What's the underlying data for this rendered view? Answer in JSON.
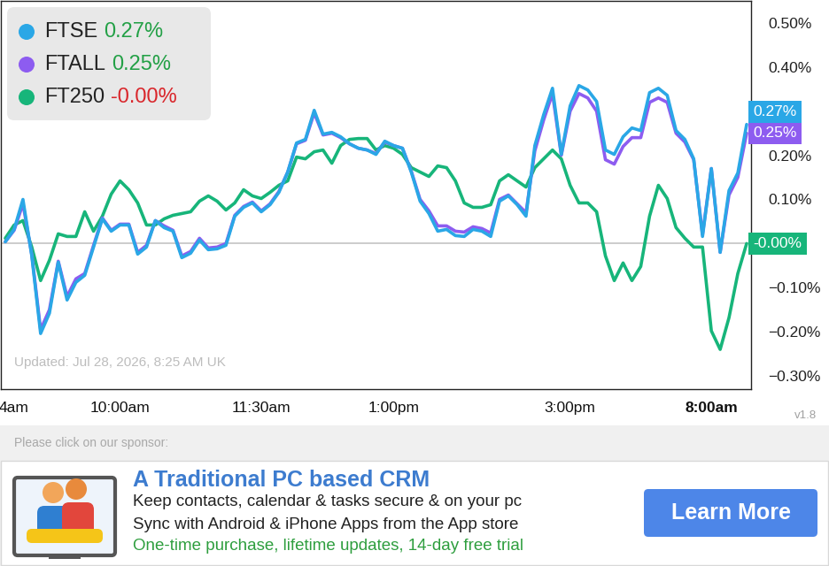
{
  "chart_data": {
    "type": "line",
    "categories": [
      null,
      "4am",
      null,
      null,
      null,
      null,
      null,
      null,
      null,
      null,
      null,
      null,
      null,
      "10:00am",
      null,
      null,
      null,
      null,
      null,
      null,
      null,
      null,
      null,
      null,
      null,
      null,
      null,
      null,
      null,
      "11:30am",
      null,
      null,
      null,
      null,
      null,
      null,
      null,
      null,
      null,
      null,
      null,
      null,
      null,
      null,
      "1:00pm",
      null,
      null,
      null,
      null,
      null,
      null,
      null,
      null,
      null,
      null,
      null,
      null,
      null,
      null,
      null,
      null,
      null,
      null,
      null,
      "3:00pm",
      null,
      null,
      null,
      null,
      null,
      null,
      null,
      null,
      null,
      null,
      null,
      null,
      null,
      null,
      null,
      "8:00am",
      null,
      null,
      null,
      null
    ],
    "series": [
      {
        "name": "FTSE",
        "color": "#2aa7e6",
        "change": "0.27%",
        "values": [
          0.004,
          0.032,
          0.1,
          -0.028,
          -0.204,
          -0.158,
          -0.042,
          -0.128,
          -0.088,
          -0.072,
          -0.008,
          0.056,
          0.028,
          0.042,
          0.042,
          -0.024,
          -0.008,
          0.052,
          0.036,
          0.028,
          -0.032,
          -0.022,
          0.008,
          -0.014,
          -0.012,
          -0.004,
          0.062,
          0.082,
          0.092,
          0.072,
          0.088,
          0.116,
          0.162,
          0.228,
          0.236,
          0.302,
          0.248,
          0.252,
          0.242,
          0.226,
          0.216,
          0.212,
          0.202,
          0.232,
          0.222,
          0.216,
          0.162,
          0.096,
          0.068,
          0.028,
          0.032,
          0.018,
          0.016,
          0.032,
          0.028,
          0.016,
          0.096,
          0.108,
          0.088,
          0.062,
          0.222,
          0.292,
          0.352,
          0.202,
          0.312,
          0.358,
          0.348,
          0.322,
          0.212,
          0.202,
          0.242,
          0.262,
          0.256,
          0.342,
          0.352,
          0.336,
          0.256,
          0.236,
          0.192,
          0.016,
          0.17,
          -0.02,
          0.12,
          0.16,
          0.27
        ]
      },
      {
        "name": "FTALL",
        "color": "#8d5cf0",
        "change": "0.25%",
        "values": [
          0.004,
          0.03,
          0.09,
          -0.025,
          -0.195,
          -0.15,
          -0.04,
          -0.12,
          -0.08,
          -0.068,
          -0.004,
          0.058,
          0.03,
          0.044,
          0.044,
          -0.02,
          -0.004,
          0.052,
          0.04,
          0.03,
          -0.028,
          -0.018,
          0.012,
          -0.01,
          -0.008,
          0.0,
          0.064,
          0.084,
          0.094,
          0.074,
          0.09,
          0.118,
          0.162,
          0.226,
          0.234,
          0.296,
          0.246,
          0.25,
          0.24,
          0.226,
          0.216,
          0.212,
          0.204,
          0.23,
          0.222,
          0.216,
          0.164,
          0.1,
          0.074,
          0.04,
          0.04,
          0.028,
          0.026,
          0.038,
          0.034,
          0.024,
          0.1,
          0.11,
          0.09,
          0.07,
          0.21,
          0.28,
          0.34,
          0.2,
          0.3,
          0.34,
          0.33,
          0.3,
          0.19,
          0.18,
          0.22,
          0.24,
          0.24,
          0.32,
          0.33,
          0.32,
          0.25,
          0.23,
          0.19,
          0.02,
          0.17,
          -0.02,
          0.11,
          0.15,
          0.25
        ]
      },
      {
        "name": "FT250",
        "color": "#17b57a",
        "change": "-0.00%",
        "values": [
          0.012,
          0.042,
          0.052,
          -0.008,
          -0.084,
          -0.038,
          0.022,
          0.016,
          0.016,
          0.072,
          0.028,
          0.062,
          0.112,
          0.142,
          0.122,
          0.092,
          0.042,
          0.042,
          0.056,
          0.064,
          0.068,
          0.072,
          0.096,
          0.108,
          0.096,
          0.076,
          0.092,
          0.122,
          0.108,
          0.102,
          0.116,
          0.132,
          0.142,
          0.196,
          0.192,
          0.208,
          0.212,
          0.182,
          0.222,
          0.236,
          0.238,
          0.238,
          0.212,
          0.222,
          0.216,
          0.202,
          0.172,
          0.162,
          0.152,
          0.176,
          0.172,
          0.142,
          0.092,
          0.082,
          0.082,
          0.088,
          0.142,
          0.156,
          0.142,
          0.128,
          0.172,
          0.192,
          0.212,
          0.192,
          0.132,
          0.092,
          0.092,
          0.072,
          -0.028,
          -0.084,
          -0.044,
          -0.084,
          -0.052,
          0.062,
          0.132,
          0.102,
          0.036,
          0.012,
          -0.008,
          -0.008,
          -0.198,
          -0.24,
          -0.168,
          -0.068,
          0.0
        ]
      }
    ],
    "ylim": [
      -0.33,
      0.55
    ],
    "yticks": [
      {
        "value": 0.5,
        "label": "0.50%"
      },
      {
        "value": 0.4,
        "label": "0.40%"
      },
      {
        "value": 0.2,
        "label": "0.20%"
      },
      {
        "value": 0.1,
        "label": "0.10%"
      },
      {
        "value": -0.1,
        "label": "−0.10%"
      },
      {
        "value": -0.2,
        "label": "−0.20%"
      },
      {
        "value": -0.3,
        "label": "−0.30%"
      }
    ],
    "baseline": 0,
    "grid": false,
    "legend": "upper left",
    "annotations": [
      "Updated: Jul 28, 2026, 8:25 AM UK"
    ]
  },
  "page": {
    "version": "v1.8",
    "sponsor": {
      "prompt": "Please click on our sponsor:",
      "title": "A Traditional PC based CRM",
      "lines": [
        "Keep contacts, calendar & tasks secure & on your pc",
        "Sync with Android & iPhone Apps from the App store"
      ],
      "offer": "One-time purchase, lifetime updates, 14-day free trial",
      "button": "Learn More"
    }
  }
}
